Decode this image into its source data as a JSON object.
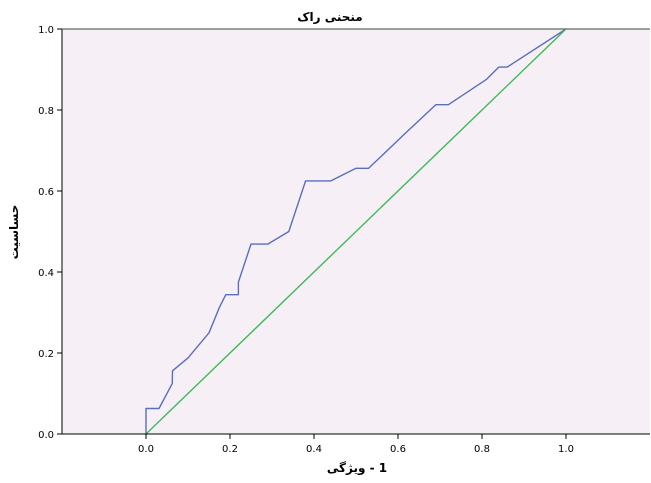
{
  "chart_data": {
    "type": "line",
    "title": "منحنی راک",
    "xlabel": "1 - ویژگی",
    "ylabel": "حساسیت",
    "xlim": [
      -0.2,
      1.2
    ],
    "ylim": [
      0.0,
      1.0
    ],
    "xticks": [
      "0.0",
      "0.2",
      "0.4",
      "0.6",
      "0.8",
      "1.0"
    ],
    "yticks": [
      "0.0",
      "0.2",
      "0.4",
      "0.6",
      "0.8",
      "1.0"
    ],
    "grid": false,
    "legend": "none",
    "plot_background": "#f7eff6",
    "series": [
      {
        "color": "#5b6ebc",
        "x": [
          0.0,
          0.0,
          0.031,
          0.0625,
          0.0625,
          0.063,
          0.1,
          0.15,
          0.175,
          0.19,
          0.22,
          0.22,
          0.22,
          0.25,
          0.29,
          0.34,
          0.38,
          0.44,
          0.5,
          0.53,
          0.625,
          0.69,
          0.72,
          0.81,
          0.84,
          0.86,
          1.0
        ],
        "y": [
          0.0,
          0.063,
          0.063,
          0.125,
          0.125,
          0.156,
          0.188,
          0.25,
          0.313,
          0.344,
          0.344,
          0.375,
          0.375,
          0.469,
          0.469,
          0.5,
          0.625,
          0.625,
          0.656,
          0.656,
          0.75,
          0.813,
          0.813,
          0.875,
          0.906,
          0.906,
          1.0
        ]
      },
      {
        "color": "#3dbb56",
        "x": [
          0.0,
          1.0
        ],
        "y": [
          0.0,
          1.0
        ]
      }
    ]
  }
}
